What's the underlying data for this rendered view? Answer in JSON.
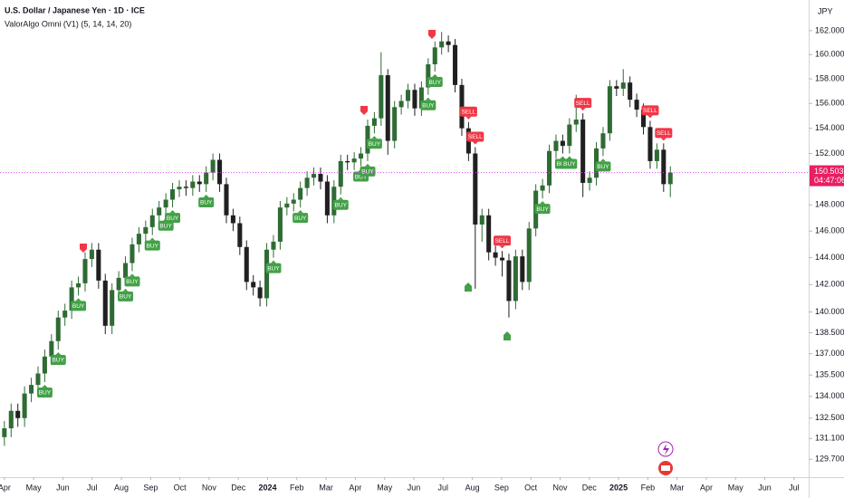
{
  "chart_data": {
    "type": "candlestick",
    "title": "U.S. Dollar / Japanese Yen · 1D · ICE",
    "subtitle": "ValorAlgo Omni (V1) (5, 14, 14, 20)",
    "currency": "JPY",
    "log_scale": true,
    "grid": false,
    "up_color": "#2f6b34",
    "down_color": "#202020",
    "ylim": [
      128.5,
      164.6
    ],
    "yticks": [
      {
        "value": 162,
        "label": "162.000"
      },
      {
        "value": 160,
        "label": "160.000"
      },
      {
        "value": 158,
        "label": "158.000"
      },
      {
        "value": 156,
        "label": "156.000"
      },
      {
        "value": 154,
        "label": "154.000"
      },
      {
        "value": 152,
        "label": "152.000"
      },
      {
        "value": 148,
        "label": "148.000"
      },
      {
        "value": 146,
        "label": "146.000"
      },
      {
        "value": 144,
        "label": "144.000"
      },
      {
        "value": 142,
        "label": "142.000"
      },
      {
        "value": 140,
        "label": "140.000"
      },
      {
        "value": 138.5,
        "label": "138.500"
      },
      {
        "value": 137,
        "label": "137.000"
      },
      {
        "value": 135.5,
        "label": "135.500"
      },
      {
        "value": 134,
        "label": "134.000"
      },
      {
        "value": 132.5,
        "label": "132.500"
      },
      {
        "value": 131.1,
        "label": "131.100"
      },
      {
        "value": 129.7,
        "label": "129.700"
      }
    ],
    "xlim": [
      -0.15,
      27.5
    ],
    "xticks": [
      {
        "value": 0,
        "label": "Apr"
      },
      {
        "value": 1,
        "label": "May"
      },
      {
        "value": 2,
        "label": "Jun"
      },
      {
        "value": 3,
        "label": "Jul"
      },
      {
        "value": 4,
        "label": "Aug"
      },
      {
        "value": 5,
        "label": "Sep"
      },
      {
        "value": 6,
        "label": "Oct"
      },
      {
        "value": 7,
        "label": "Nov"
      },
      {
        "value": 8,
        "label": "Dec"
      },
      {
        "value": 9,
        "label": "2024"
      },
      {
        "value": 10,
        "label": "Feb"
      },
      {
        "value": 11,
        "label": "Mar"
      },
      {
        "value": 12,
        "label": "Apr"
      },
      {
        "value": 13,
        "label": "May"
      },
      {
        "value": 14,
        "label": "Jun"
      },
      {
        "value": 15,
        "label": "Jul"
      },
      {
        "value": 16,
        "label": "Aug"
      },
      {
        "value": 17,
        "label": "Sep"
      },
      {
        "value": 18,
        "label": "Oct"
      },
      {
        "value": 19,
        "label": "Nov"
      },
      {
        "value": 20,
        "label": "Dec"
      },
      {
        "value": 21,
        "label": "2025"
      },
      {
        "value": 22,
        "label": "Feb"
      },
      {
        "value": 23,
        "label": "Mar"
      },
      {
        "value": 24,
        "label": "Apr"
      },
      {
        "value": 25,
        "label": "May"
      },
      {
        "value": 26,
        "label": "Jun"
      },
      {
        "value": 27,
        "label": "Jul"
      }
    ],
    "last_price": {
      "value": 150.503,
      "label": "150.503"
    },
    "countdown": "04:47:06",
    "x": [
      0,
      0.23,
      0.46,
      0.69,
      0.92,
      1.15,
      1.38,
      1.61,
      1.84,
      2.07,
      2.3,
      2.53,
      2.76,
      2.99,
      3.22,
      3.45,
      3.68,
      3.91,
      4.14,
      4.37,
      4.6,
      4.83,
      5.06,
      5.29,
      5.52,
      5.75,
      5.98,
      6.21,
      6.44,
      6.67,
      6.9,
      7.13,
      7.36,
      7.59,
      7.82,
      8.05,
      8.28,
      8.51,
      8.74,
      8.97,
      9.2,
      9.43,
      9.66,
      9.89,
      10.12,
      10.35,
      10.58,
      10.81,
      11.04,
      11.27,
      11.5,
      11.73,
      11.96,
      12.19,
      12.42,
      12.65,
      12.88,
      13.11,
      13.34,
      13.57,
      13.8,
      14.03,
      14.26,
      14.49,
      14.72,
      14.95,
      15.18,
      15.41,
      15.64,
      15.87,
      16.1,
      16.33,
      16.56,
      16.79,
      17.02,
      17.25,
      17.48,
      17.71,
      17.94,
      18.17,
      18.4,
      18.63,
      18.86,
      19.09,
      19.32,
      19.55,
      19.78,
      20.01,
      20.24,
      20.47,
      20.7,
      20.93,
      21.16,
      21.39,
      21.62,
      21.85,
      22.08,
      22.31,
      22.54,
      22.77
    ],
    "open": [
      131.2,
      131.8,
      133.0,
      132.5,
      134.2,
      134.8,
      135.6,
      136.8,
      137.9,
      139.6,
      140.1,
      141.8,
      142.1,
      143.9,
      144.6,
      142.3,
      139.0,
      141.6,
      142.5,
      143.6,
      145.0,
      145.8,
      146.3,
      147.2,
      147.8,
      148.4,
      149.2,
      149.4,
      149.3,
      149.8,
      149.6,
      150.5,
      151.5,
      149.6,
      147.2,
      146.6,
      144.8,
      142.2,
      141.8,
      141.0,
      144.6,
      145.2,
      147.8,
      148.1,
      148.4,
      149.3,
      150.1,
      150.4,
      149.8,
      147.2,
      149.4,
      151.4,
      151.3,
      151.6,
      152.0,
      154.2,
      154.8,
      158.3,
      153.0,
      155.7,
      156.2,
      157.1,
      155.6,
      157.3,
      159.2,
      160.6,
      161.1,
      160.8,
      157.5,
      154.0,
      152.0,
      146.5,
      147.2,
      144.4,
      144.0,
      143.8,
      140.8,
      144.1,
      142.2,
      146.2,
      149.1,
      149.5,
      152.2,
      153.0,
      152.6,
      154.3,
      154.7,
      149.7,
      150.1,
      152.4,
      153.6,
      157.4,
      157.2,
      157.7,
      156.3,
      155.5,
      154.1,
      151.4,
      152.3,
      149.6
    ],
    "high": [
      132.3,
      133.5,
      133.5,
      134.7,
      135.3,
      136.1,
      137.3,
      138.4,
      140.1,
      140.6,
      142.3,
      142.6,
      144.4,
      145.1,
      145.1,
      142.8,
      142.1,
      143.0,
      144.1,
      145.5,
      146.3,
      146.8,
      147.7,
      148.3,
      148.9,
      149.7,
      149.9,
      149.9,
      150.3,
      150.3,
      151.0,
      152.0,
      152.0,
      150.1,
      147.7,
      147.1,
      145.3,
      142.7,
      142.3,
      145.1,
      145.7,
      148.3,
      148.6,
      148.9,
      149.8,
      150.6,
      150.9,
      150.9,
      150.3,
      149.9,
      151.9,
      151.9,
      152.1,
      152.5,
      154.7,
      155.3,
      160.2,
      158.8,
      156.2,
      156.7,
      157.6,
      157.6,
      157.8,
      159.7,
      161.1,
      161.9,
      161.6,
      161.3,
      158.0,
      154.5,
      152.5,
      147.7,
      147.7,
      144.9,
      144.5,
      144.3,
      144.6,
      144.6,
      146.7,
      149.6,
      150.0,
      152.7,
      153.5,
      153.5,
      154.8,
      156.7,
      155.2,
      150.6,
      152.9,
      154.1,
      157.9,
      157.9,
      158.8,
      158.2,
      156.8,
      156.0,
      154.6,
      152.8,
      152.8,
      151.0
    ],
    "low": [
      130.6,
      131.2,
      131.9,
      131.9,
      133.6,
      134.2,
      135.0,
      136.2,
      137.3,
      139.0,
      139.5,
      141.2,
      141.5,
      143.3,
      141.7,
      138.4,
      138.4,
      141.0,
      141.9,
      143.0,
      144.4,
      145.2,
      145.7,
      146.6,
      147.2,
      147.8,
      148.6,
      148.7,
      148.7,
      149.0,
      149.0,
      149.9,
      149.0,
      146.6,
      146.0,
      144.2,
      141.6,
      141.2,
      140.4,
      140.4,
      144.0,
      144.6,
      147.2,
      147.5,
      147.8,
      148.7,
      149.5,
      149.2,
      146.6,
      146.6,
      148.8,
      150.7,
      150.7,
      151.0,
      151.4,
      153.6,
      154.2,
      151.9,
      152.4,
      155.1,
      155.6,
      155.0,
      155.0,
      156.7,
      158.6,
      160.0,
      160.2,
      156.9,
      153.4,
      151.4,
      141.7,
      145.2,
      143.8,
      143.4,
      142.6,
      139.6,
      140.2,
      141.6,
      141.6,
      145.6,
      148.5,
      148.9,
      151.6,
      152.0,
      152.0,
      153.7,
      148.6,
      149.1,
      149.5,
      151.8,
      153.0,
      156.6,
      156.6,
      155.7,
      154.9,
      153.5,
      150.8,
      150.8,
      149.0,
      148.6
    ],
    "close": [
      131.8,
      133.0,
      132.5,
      134.2,
      134.8,
      135.6,
      136.8,
      137.9,
      139.6,
      140.1,
      141.8,
      142.1,
      143.9,
      144.6,
      142.3,
      139.0,
      141.6,
      142.5,
      143.6,
      145.0,
      145.8,
      146.3,
      147.2,
      147.8,
      148.4,
      149.2,
      149.4,
      149.3,
      149.8,
      149.6,
      150.5,
      151.5,
      149.6,
      147.2,
      146.6,
      144.8,
      142.2,
      141.8,
      141.0,
      144.6,
      145.2,
      147.8,
      148.1,
      148.4,
      149.3,
      150.1,
      150.4,
      149.8,
      147.2,
      149.4,
      151.4,
      151.3,
      151.6,
      152.0,
      154.2,
      154.8,
      158.3,
      153.0,
      155.7,
      156.2,
      157.1,
      155.6,
      157.3,
      159.2,
      160.6,
      161.1,
      160.8,
      157.5,
      154.0,
      152.0,
      146.5,
      147.2,
      144.4,
      144.0,
      143.8,
      140.8,
      144.1,
      142.2,
      146.2,
      149.1,
      149.5,
      152.2,
      153.0,
      152.6,
      154.3,
      154.7,
      149.7,
      150.1,
      152.4,
      153.6,
      157.4,
      157.2,
      157.7,
      156.3,
      155.5,
      154.1,
      151.4,
      152.3,
      149.6,
      150.5
    ],
    "signals": [
      {
        "text": "BUY",
        "at": 6
      },
      {
        "text": "BUY",
        "at": 8
      },
      {
        "text": "BUY",
        "at": 11
      },
      {
        "text": "BUY",
        "at": 18
      },
      {
        "text": "BUY",
        "at": 19
      },
      {
        "text": "BUY",
        "at": 22
      },
      {
        "text": "BUY",
        "at": 24
      },
      {
        "text": "BUY",
        "at": 25
      },
      {
        "text": "BUY",
        "at": 30
      },
      {
        "text": "BUY",
        "at": 40
      },
      {
        "text": "BUY",
        "at": 44
      },
      {
        "text": "BUY",
        "at": 50
      },
      {
        "text": "BUY",
        "at": 53
      },
      {
        "text": "BUY",
        "at": 54
      },
      {
        "text": "BUY",
        "at": 55
      },
      {
        "text": "BUY",
        "at": 63
      },
      {
        "text": "BUY",
        "at": 64
      },
      {
        "text": "BUY",
        "at": 80
      },
      {
        "text": "BUY",
        "at": 83
      },
      {
        "text": "BUY",
        "at": 84
      },
      {
        "text": "BUY",
        "at": 89
      },
      {
        "text": "SELL",
        "at": 69
      },
      {
        "text": "SELL",
        "at": 70
      },
      {
        "text": "SELL",
        "at": 74
      },
      {
        "text": "SELL",
        "at": 86
      },
      {
        "text": "SELL",
        "at": 96
      },
      {
        "text": "SELL",
        "at": 98
      }
    ]
  }
}
